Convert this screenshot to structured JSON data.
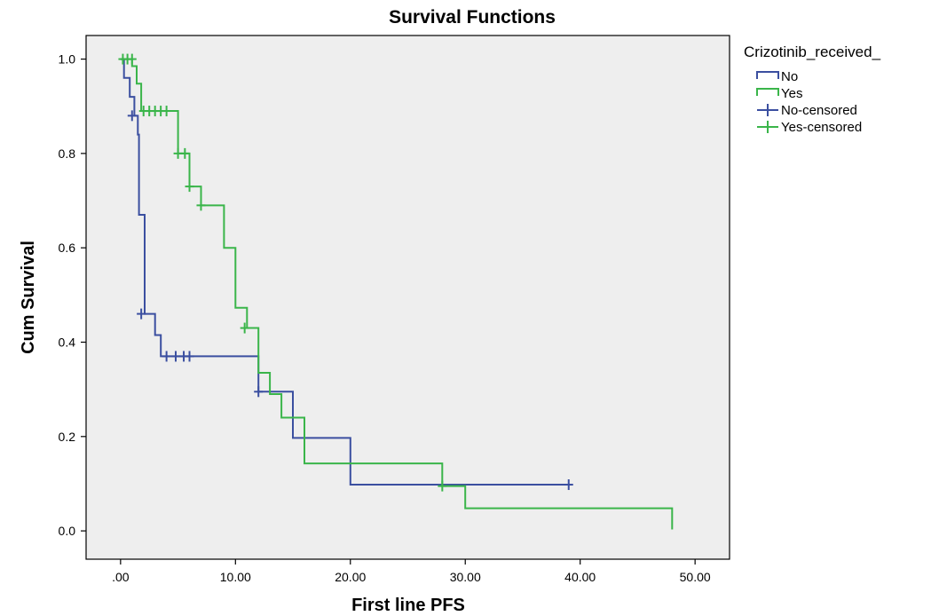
{
  "chart_data": {
    "type": "line",
    "title": "Survival Functions",
    "xlabel": "First line PFS",
    "ylabel": "Cum Survival",
    "xlim": [
      -3,
      53
    ],
    "ylim": [
      -0.06,
      1.05
    ],
    "x_ticks": [
      0,
      10,
      20,
      30,
      40,
      50
    ],
    "x_tick_labels": [
      ".00",
      "10.00",
      "20.00",
      "30.00",
      "40.00",
      "50.00"
    ],
    "y_ticks": [
      0.0,
      0.2,
      0.4,
      0.6,
      0.8,
      1.0
    ],
    "y_tick_labels": [
      "0.0",
      "0.2",
      "0.4",
      "0.6",
      "0.8",
      "1.0"
    ],
    "grid": false,
    "plot_background": "#eeeeee",
    "legend_title": "Crizotinib_received_",
    "legend_position": "right",
    "series": [
      {
        "name": "No",
        "color": "#3b4fa0",
        "steps": [
          [
            0,
            1.0
          ],
          [
            0.3,
            1.0
          ],
          [
            0.3,
            0.96
          ],
          [
            0.8,
            0.96
          ],
          [
            0.8,
            0.92
          ],
          [
            1.2,
            0.92
          ],
          [
            1.2,
            0.88
          ],
          [
            1.5,
            0.88
          ],
          [
            1.5,
            0.84
          ],
          [
            1.6,
            0.84
          ],
          [
            1.6,
            0.67
          ],
          [
            2.1,
            0.67
          ],
          [
            2.1,
            0.46
          ],
          [
            3.0,
            0.46
          ],
          [
            3.0,
            0.415
          ],
          [
            3.5,
            0.415
          ],
          [
            3.5,
            0.37
          ],
          [
            12.0,
            0.37
          ],
          [
            12.0,
            0.295
          ],
          [
            15.0,
            0.295
          ],
          [
            15.0,
            0.197
          ],
          [
            20.0,
            0.197
          ],
          [
            20.0,
            0.098
          ],
          [
            39.0,
            0.098
          ]
        ],
        "censored": [
          [
            1.0,
            0.88
          ],
          [
            1.8,
            0.46
          ],
          [
            4.0,
            0.37
          ],
          [
            4.8,
            0.37
          ],
          [
            5.5,
            0.37
          ],
          [
            6.0,
            0.37
          ],
          [
            12.0,
            0.295
          ],
          [
            39.0,
            0.098
          ]
        ]
      },
      {
        "name": "Yes",
        "color": "#3ab54a",
        "steps": [
          [
            0,
            1.0
          ],
          [
            1.0,
            1.0
          ],
          [
            1.0,
            0.985
          ],
          [
            1.4,
            0.985
          ],
          [
            1.4,
            0.948
          ],
          [
            1.8,
            0.948
          ],
          [
            1.8,
            0.89
          ],
          [
            5.0,
            0.89
          ],
          [
            5.0,
            0.8
          ],
          [
            6.0,
            0.8
          ],
          [
            6.0,
            0.73
          ],
          [
            7.0,
            0.73
          ],
          [
            7.0,
            0.69
          ],
          [
            9.0,
            0.69
          ],
          [
            9.0,
            0.6
          ],
          [
            10.0,
            0.6
          ],
          [
            10.0,
            0.473
          ],
          [
            11.0,
            0.473
          ],
          [
            11.0,
            0.43
          ],
          [
            12.0,
            0.43
          ],
          [
            12.0,
            0.335
          ],
          [
            13.0,
            0.335
          ],
          [
            13.0,
            0.29
          ],
          [
            14.0,
            0.29
          ],
          [
            14.0,
            0.24
          ],
          [
            16.0,
            0.24
          ],
          [
            16.0,
            0.143
          ],
          [
            28.0,
            0.143
          ],
          [
            28.0,
            0.095
          ],
          [
            30.0,
            0.095
          ],
          [
            30.0,
            0.048
          ],
          [
            48.0,
            0.048
          ],
          [
            48.0,
            0.003
          ]
        ],
        "censored": [
          [
            0.2,
            1.0
          ],
          [
            0.6,
            1.0
          ],
          [
            1.0,
            1.0
          ],
          [
            2.0,
            0.89
          ],
          [
            2.5,
            0.89
          ],
          [
            3.0,
            0.89
          ],
          [
            3.5,
            0.89
          ],
          [
            4.0,
            0.89
          ],
          [
            5.0,
            0.8
          ],
          [
            5.6,
            0.8
          ],
          [
            6.0,
            0.73
          ],
          [
            7.0,
            0.69
          ],
          [
            10.8,
            0.43
          ],
          [
            28.0,
            0.095
          ]
        ]
      }
    ],
    "legend_entries": [
      {
        "label": "No",
        "color": "#3b4fa0",
        "kind": "line"
      },
      {
        "label": "Yes",
        "color": "#3ab54a",
        "kind": "line"
      },
      {
        "label": "No-censored",
        "color": "#3b4fa0",
        "kind": "censor"
      },
      {
        "label": "Yes-censored",
        "color": "#3ab54a",
        "kind": "censor"
      }
    ]
  }
}
